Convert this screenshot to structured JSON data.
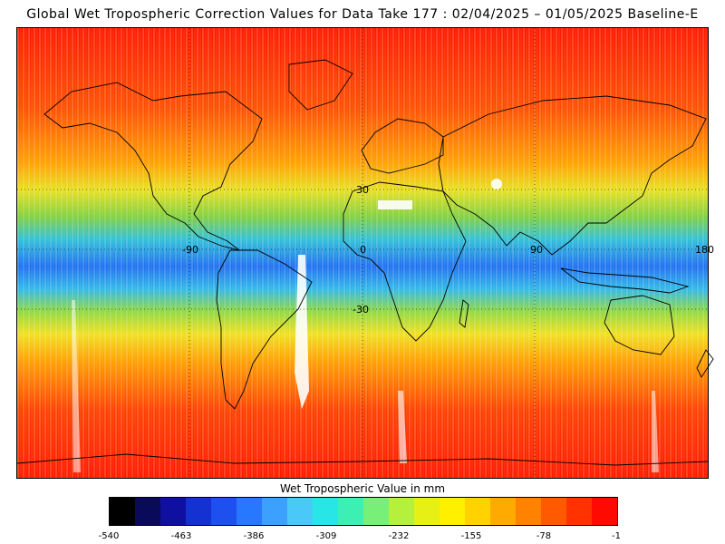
{
  "title": "Global Wet Tropospheric Correction Values for Data Take 177 : 02/04/2025 – 01/05/2025 Baseline-E",
  "map": {
    "grid_labels": {
      "lat_north_30": "30",
      "lat_south_30": "-30",
      "lon_minus_90": "-90",
      "lon_0": "0",
      "lon_90": "90",
      "lon_180": "180"
    },
    "palette": {
      "deep_red": "#ff1a00",
      "orange": "#ff8c00",
      "yellow": "#ffe000",
      "green": "#7cd63a",
      "cyan": "#1ec8e0",
      "blue": "#1e6cf0",
      "coast": "#000000"
    }
  },
  "colorbar": {
    "title": "Wet Tropospheric Value in mm",
    "min": -540,
    "max": -1,
    "ticks": [
      "-540",
      "-463",
      "-386",
      "-309",
      "-232",
      "-155",
      "-78",
      "-1"
    ],
    "colors": [
      "#000000",
      "#0a0a5a",
      "#1010a0",
      "#1432d2",
      "#1e50f0",
      "#2878ff",
      "#3ca0ff",
      "#4ac8f8",
      "#28e6e6",
      "#3cf0b4",
      "#78f078",
      "#b4f03c",
      "#e6f014",
      "#fff000",
      "#ffd200",
      "#ffaa00",
      "#ff8200",
      "#ff5a00",
      "#ff3200",
      "#ff0a00"
    ]
  }
}
